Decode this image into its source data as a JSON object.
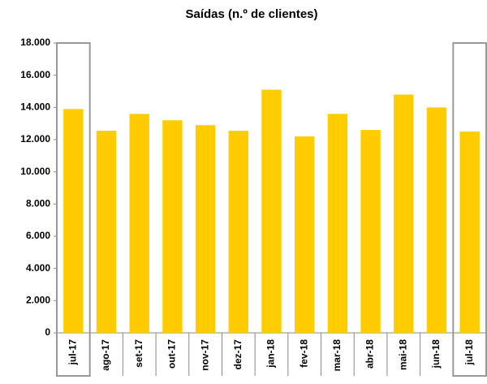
{
  "chart_data": {
    "type": "bar",
    "title": "Saídas (n.º de clientes)",
    "categories": [
      "jul-17",
      "ago-17",
      "set-17",
      "out-17",
      "nov-17",
      "dez-17",
      "jan-18",
      "fev-18",
      "mar-18",
      "abr-18",
      "mai-18",
      "jun-18",
      "jul-18"
    ],
    "values": [
      13900,
      12550,
      13600,
      13200,
      12900,
      12550,
      15100,
      12200,
      13600,
      12600,
      14800,
      14000,
      12500
    ],
    "color": "#ffcc00",
    "ylim": [
      0,
      18000
    ],
    "yticks": [
      0,
      {
        "value": 2000,
        "label": "2.000"
      },
      {
        "value": 4000,
        "label": "4.000"
      },
      {
        "value": 6000,
        "label": "6.000"
      },
      {
        "value": 8000,
        "label": "8.000"
      },
      {
        "value": 10000,
        "label": "10.000"
      },
      {
        "value": 12000,
        "label": "12.000"
      },
      {
        "value": 14000,
        "label": "14.000"
      },
      {
        "value": 16000,
        "label": "16.000"
      },
      {
        "value": 18000,
        "label": "18.000"
      }
    ],
    "grid": false
  }
}
